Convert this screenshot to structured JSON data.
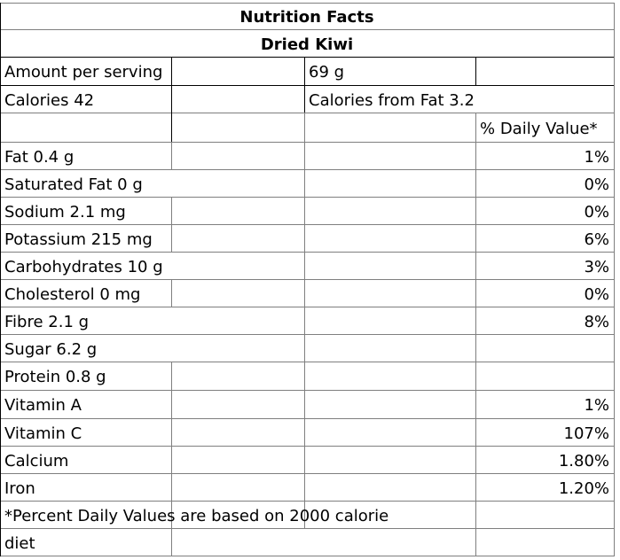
{
  "title": "Nutrition Facts",
  "subtitle": "Dried Kiwi",
  "serving": {
    "label": "Amount per serving",
    "value": "69 g"
  },
  "calories": {
    "label": "Calories 42",
    "from_fat": "Calories from Fat 3.2"
  },
  "daily_value_header": "% Daily Value*",
  "nutrients": [
    {
      "label": "Fat 0.4 g",
      "dv": "1%"
    },
    {
      "label": "Saturated Fat 0 g",
      "dv": "0%"
    },
    {
      "label": "Sodium 2.1 mg",
      "dv": "0%"
    },
    {
      "label": "Potassium 215 mg",
      "dv": "6%"
    },
    {
      "label": "Carbohydrates 10 g",
      "dv": "3%"
    },
    {
      "label": "Cholesterol 0 mg",
      "dv": "0%"
    },
    {
      "label": "Fibre 2.1 g",
      "dv": "8%"
    },
    {
      "label": "Sugar 6.2 g",
      "dv": ""
    },
    {
      "label": "Protein 0.8 g",
      "dv": ""
    },
    {
      "label": "Vitamin A",
      "dv": "1%"
    },
    {
      "label": "Vitamin C",
      "dv": "107%"
    },
    {
      "label": "Calcium",
      "dv": "1.80%"
    },
    {
      "label": "Iron",
      "dv": "1.20%"
    }
  ],
  "footnote": {
    "line1": "*Percent Daily Values are based on 2000 calorie",
    "line2": "diet"
  }
}
